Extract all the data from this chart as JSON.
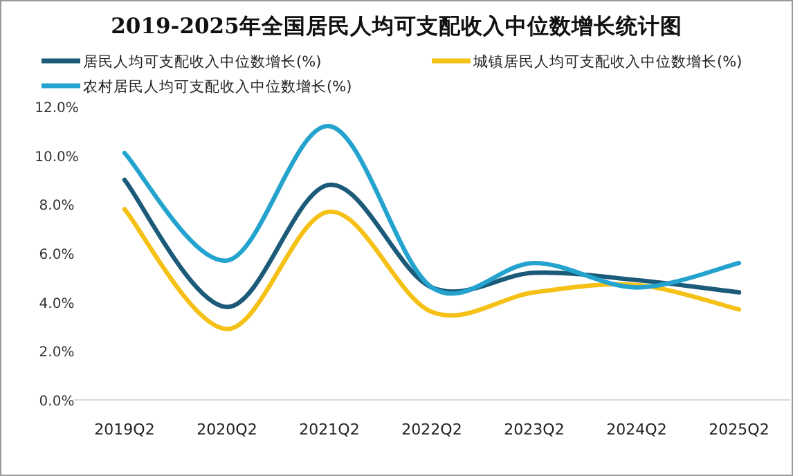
{
  "chart_data": {
    "type": "line",
    "title": "2019-2025年全国居民人均可支配收入中位数增长统计图",
    "categories": [
      "2019Q2",
      "2020Q2",
      "2021Q2",
      "2022Q2",
      "2023Q2",
      "2024Q2",
      "2025Q2"
    ],
    "series": [
      {
        "name": "居民人均可支配收入中位数增长(%)",
        "color": "#1b5a78",
        "values": [
          9.0,
          3.8,
          8.8,
          4.6,
          5.2,
          4.9,
          4.4
        ]
      },
      {
        "name": "城镇居民人均可支配收入中位数增长(%)",
        "color": "#f5c116",
        "values": [
          7.8,
          2.9,
          7.7,
          3.6,
          4.4,
          4.7,
          3.7
        ]
      },
      {
        "name": "农村居民人均可支配收入中位数增长(%)",
        "color": "#23a3cd",
        "values": [
          10.1,
          5.7,
          11.2,
          4.6,
          5.6,
          4.6,
          5.6
        ]
      }
    ],
    "ylim": [
      0,
      12
    ],
    "yticks": [
      {
        "value": 0,
        "label": "0.0%"
      },
      {
        "value": 2,
        "label": "2.0%"
      },
      {
        "value": 4,
        "label": "4.0%"
      },
      {
        "value": 6,
        "label": "6.0%"
      },
      {
        "value": 8,
        "label": "8.0%"
      },
      {
        "value": 10,
        "label": "10.0%"
      },
      {
        "value": 12,
        "label": "12.0%"
      }
    ],
    "legend": "top",
    "marker": "none",
    "line_style": "solid",
    "grid": false
  }
}
